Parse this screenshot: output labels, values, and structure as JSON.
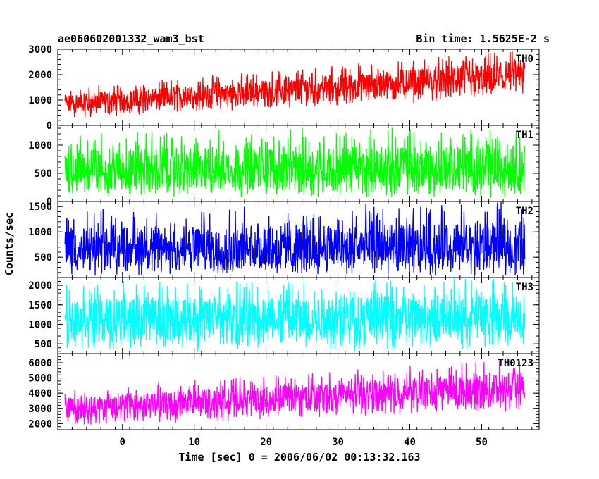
{
  "chart_data": {
    "type": "line",
    "title": "ae060602001332_wam3_bst",
    "subtitle": "Bin time: 1.5625E-2 s",
    "xlabel": "Time [sec] 0 = 2006/06/02 00:13:32.163",
    "ylabel": "Counts/sec",
    "xlim": [
      -9,
      58
    ],
    "xticks": [
      0,
      10,
      20,
      30,
      40,
      50
    ],
    "x_data_range": [
      -8,
      56
    ],
    "grid": false,
    "panels": [
      {
        "name": "TH0",
        "color": "#ff0000",
        "ylim": [
          0,
          3000
        ],
        "yticks": [
          0,
          1000,
          2000,
          3000
        ],
        "series": [
          {
            "name": "TH0",
            "x_range": [
              -8,
              56
            ],
            "trend": [
              {
                "x": -8,
                "low": 250,
                "mean": 850,
                "high": 1500
              },
              {
                "x": 24,
                "low": 700,
                "mean": 1400,
                "high": 2250
              },
              {
                "x": 56,
                "low": 1000,
                "mean": 1950,
                "high": 3000
              }
            ]
          }
        ]
      },
      {
        "name": "TH1",
        "color": "#00ff00",
        "ylim": [
          0,
          1350
        ],
        "yticks": [
          0,
          500,
          1000
        ],
        "series": [
          {
            "name": "TH1",
            "x_range": [
              -8,
              56
            ],
            "trend": [
              {
                "x": -8,
                "low": 60,
                "mean": 540,
                "high": 1250
              },
              {
                "x": 56,
                "low": 60,
                "mean": 560,
                "high": 1350
              }
            ]
          }
        ]
      },
      {
        "name": "TH2",
        "color": "#0000ff",
        "ylim": [
          100,
          1600
        ],
        "yticks": [
          500,
          1000,
          1500
        ],
        "series": [
          {
            "name": "TH2",
            "x_range": [
              -8,
              56
            ],
            "trend": [
              {
                "x": -8,
                "low": 120,
                "mean": 650,
                "high": 1450
              },
              {
                "x": 56,
                "low": 120,
                "mean": 660,
                "high": 1600
              }
            ]
          }
        ]
      },
      {
        "name": "TH3",
        "color": "#00ffff",
        "ylim": [
          250,
          2200
        ],
        "yticks": [
          500,
          1000,
          1500,
          2000
        ],
        "series": [
          {
            "name": "TH3",
            "x_range": [
              -8,
              56
            ],
            "trend": [
              {
                "x": -8,
                "low": 300,
                "mean": 1150,
                "high": 2100
              },
              {
                "x": 56,
                "low": 300,
                "mean": 1200,
                "high": 2200
              }
            ]
          }
        ]
      },
      {
        "name": "TH0123",
        "color": "#ff00ff",
        "ylim": [
          1600,
          6600
        ],
        "yticks": [
          2000,
          3000,
          4000,
          5000,
          6000
        ],
        "series": [
          {
            "name": "TH0123",
            "x_range": [
              -8,
              56
            ],
            "trend": [
              {
                "x": -8,
                "low": 1800,
                "mean": 3000,
                "high": 4300
              },
              {
                "x": 24,
                "low": 2300,
                "mean": 3700,
                "high": 5300
              },
              {
                "x": 56,
                "low": 2800,
                "mean": 4300,
                "high": 6300
              }
            ]
          }
        ]
      }
    ]
  }
}
